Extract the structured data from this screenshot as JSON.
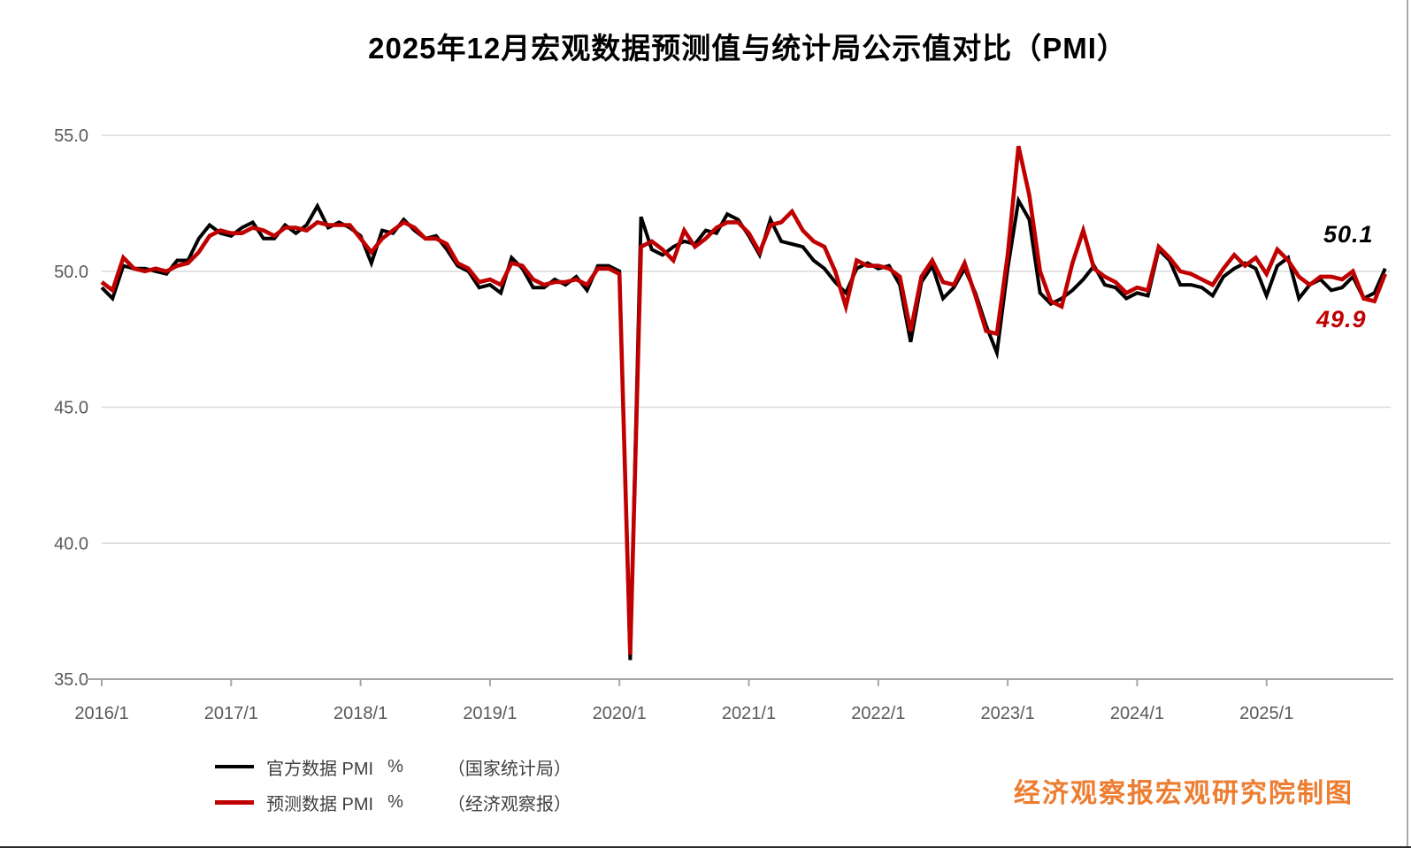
{
  "title": "2025年12月宏观数据预测值与统计局公示值对比（PMI）",
  "watermark": {
    "text": "经济观察报宏观研究院制图",
    "color": "#ed7d31"
  },
  "annotations": {
    "official_last": {
      "text": "50.1",
      "color": "#000000"
    },
    "forecast_last": {
      "text": "49.9",
      "color": "#c00000"
    }
  },
  "legend": {
    "items": [
      {
        "label": "官方数据 PMI",
        "unit": "%",
        "source": "（国家统计局）",
        "color": "#000000"
      },
      {
        "label": "预测数据 PMI",
        "unit": "%",
        "source": "（经济观察报）",
        "color": "#c00000"
      }
    ]
  },
  "colors": {
    "official_line": "#000000",
    "forecast_line": "#c00000",
    "gridline": "#d9d9d9",
    "axis": "#a6a6a6",
    "tick_label": "#595959",
    "watermark": "#ed7d31"
  },
  "chart_data": {
    "type": "line",
    "title": "2025年12月宏观数据预测值与统计局公示值对比（PMI）",
    "xlabel": "",
    "ylabel": "",
    "x_start": "2016/1",
    "x_end": "2025/12",
    "x_frequency": "monthly",
    "n_points": 120,
    "ylim": [
      35,
      55
    ],
    "grid": "horizontal",
    "legend_position": "bottom-left",
    "y_ticks": [
      {
        "value": 55,
        "label": "55.0"
      },
      {
        "value": 50,
        "label": "50.0"
      },
      {
        "value": 45,
        "label": "45.0"
      },
      {
        "value": 40,
        "label": "40.0"
      },
      {
        "value": 35,
        "label": "35.0"
      }
    ],
    "x_ticks": [
      {
        "month_index": 0,
        "label": "2016/1"
      },
      {
        "month_index": 12,
        "label": "2017/1"
      },
      {
        "month_index": 24,
        "label": "2018/1"
      },
      {
        "month_index": 36,
        "label": "2019/1"
      },
      {
        "month_index": 48,
        "label": "2020/1"
      },
      {
        "month_index": 60,
        "label": "2021/1"
      },
      {
        "month_index": 72,
        "label": "2022/1"
      },
      {
        "month_index": 84,
        "label": "2023/1"
      },
      {
        "month_index": 96,
        "label": "2024/1"
      },
      {
        "month_index": 108,
        "label": "2025/1"
      }
    ],
    "series": [
      {
        "name": "官方数据 PMI %（国家统计局）",
        "color": "#000000",
        "values": [
          49.4,
          49.0,
          50.2,
          50.1,
          50.1,
          50.0,
          49.9,
          50.4,
          50.4,
          51.2,
          51.7,
          51.4,
          51.3,
          51.6,
          51.8,
          51.2,
          51.2,
          51.7,
          51.4,
          51.7,
          52.4,
          51.6,
          51.8,
          51.6,
          51.3,
          50.3,
          51.5,
          51.4,
          51.9,
          51.5,
          51.2,
          51.3,
          50.8,
          50.2,
          50.0,
          49.4,
          49.5,
          49.2,
          50.5,
          50.1,
          49.4,
          49.4,
          49.7,
          49.5,
          49.8,
          49.3,
          50.2,
          50.2,
          50.0,
          35.7,
          52.0,
          50.8,
          50.6,
          50.9,
          51.1,
          51.0,
          51.5,
          51.4,
          52.1,
          51.9,
          51.3,
          50.6,
          51.9,
          51.1,
          51.0,
          50.9,
          50.4,
          50.1,
          49.6,
          49.2,
          50.1,
          50.3,
          50.1,
          50.2,
          49.5,
          47.4,
          49.6,
          50.2,
          49.0,
          49.4,
          50.1,
          49.2,
          48.0,
          47.0,
          50.1,
          52.6,
          51.9,
          49.2,
          48.8,
          49.0,
          49.3,
          49.7,
          50.2,
          49.5,
          49.4,
          49.0,
          49.2,
          49.1,
          50.8,
          50.4,
          49.5,
          49.5,
          49.4,
          49.1,
          49.8,
          50.1,
          50.3,
          50.1,
          49.1,
          50.2,
          50.5,
          49.0,
          49.5,
          49.7,
          49.3,
          49.4,
          49.8,
          49.0,
          49.2,
          50.1
        ]
      },
      {
        "name": "预测数据 PMI %（经济观察报）",
        "color": "#c00000",
        "values": [
          49.6,
          49.3,
          50.5,
          50.1,
          50.0,
          50.1,
          50.0,
          50.2,
          50.3,
          50.7,
          51.3,
          51.5,
          51.4,
          51.4,
          51.6,
          51.5,
          51.3,
          51.6,
          51.6,
          51.5,
          51.8,
          51.7,
          51.7,
          51.7,
          51.2,
          50.7,
          51.2,
          51.5,
          51.8,
          51.6,
          51.2,
          51.2,
          51.0,
          50.3,
          50.1,
          49.6,
          49.7,
          49.5,
          50.3,
          50.2,
          49.7,
          49.5,
          49.6,
          49.6,
          49.7,
          49.5,
          50.1,
          50.1,
          49.9,
          35.9,
          50.9,
          51.1,
          50.8,
          50.4,
          51.5,
          50.9,
          51.2,
          51.6,
          51.8,
          51.8,
          51.4,
          50.7,
          51.7,
          51.8,
          52.2,
          51.5,
          51.1,
          50.9,
          50.0,
          48.7,
          50.4,
          50.2,
          50.2,
          50.1,
          49.8,
          47.8,
          49.8,
          50.4,
          49.6,
          49.5,
          50.3,
          49.1,
          47.8,
          47.7,
          50.6,
          54.6,
          52.8,
          50.0,
          48.9,
          48.7,
          50.3,
          51.5,
          50.1,
          49.8,
          49.6,
          49.2,
          49.4,
          49.3,
          50.9,
          50.5,
          50.0,
          49.9,
          49.7,
          49.5,
          50.1,
          50.6,
          50.2,
          50.5,
          49.9,
          50.8,
          50.4,
          49.8,
          49.5,
          49.8,
          49.8,
          49.7,
          50.0,
          49.0,
          48.9,
          49.9
        ]
      }
    ],
    "annotations": [
      {
        "text": "50.1",
        "series": "official",
        "color": "#000000",
        "position": "end-of-black-line"
      },
      {
        "text": "49.9",
        "series": "forecast",
        "color": "#c00000",
        "position": "end-of-red-line"
      }
    ]
  }
}
